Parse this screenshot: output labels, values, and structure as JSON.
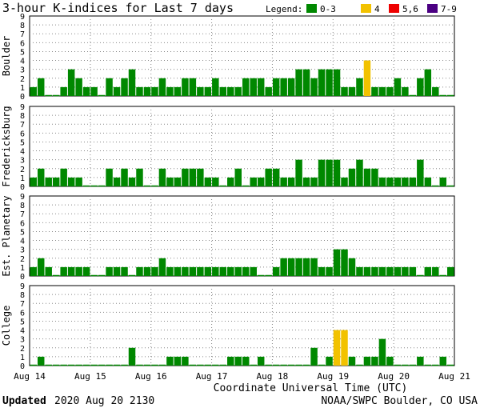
{
  "header": {
    "title": "3-hour K-indices for Last 7 days",
    "legend_label": "Legend:",
    "legend": [
      {
        "label": "0-3",
        "color": "#008800"
      },
      {
        "label": "4",
        "color": "#f2c200"
      },
      {
        "label": "5,6",
        "color": "#ee0000"
      },
      {
        "label": "7-9",
        "color": "#4b0082"
      }
    ]
  },
  "footer": {
    "updated_label": "Updated",
    "updated_value": "2020 Aug 20 2130",
    "credit": "NOAA/SWPC Boulder, CO USA"
  },
  "chart_data": [
    {
      "type": "bar",
      "ylabel": "Boulder",
      "ylim": [
        0,
        9
      ],
      "x_tick_labels": [
        "Aug 14",
        "Aug 15",
        "Aug 16",
        "Aug 17",
        "Aug 18",
        "Aug 19",
        "Aug 20",
        "Aug 21"
      ],
      "xlabel": "Coordinate Universal Time (UTC)",
      "values": [
        1,
        2,
        0,
        0,
        1,
        3,
        2,
        1,
        1,
        0,
        2,
        1,
        2,
        3,
        1,
        1,
        1,
        2,
        1,
        1,
        2,
        2,
        1,
        1,
        2,
        1,
        1,
        1,
        2,
        2,
        2,
        1,
        2,
        2,
        2,
        3,
        3,
        2,
        3,
        3,
        3,
        1,
        1,
        2,
        4,
        1,
        1,
        1,
        2,
        1,
        0,
        2,
        3,
        1,
        0,
        0
      ]
    },
    {
      "type": "bar",
      "ylabel": "Fredericksburg",
      "ylim": [
        0,
        9
      ],
      "x_tick_labels": [
        "Aug 14",
        "Aug 15",
        "Aug 16",
        "Aug 17",
        "Aug 18",
        "Aug 19",
        "Aug 20",
        "Aug 21"
      ],
      "xlabel": "Coordinate Universal Time (UTC)",
      "values": [
        1,
        2,
        1,
        1,
        2,
        1,
        1,
        0,
        0,
        0,
        2,
        1,
        2,
        1,
        2,
        0,
        0,
        2,
        1,
        1,
        2,
        2,
        2,
        1,
        1,
        0,
        1,
        2,
        0,
        1,
        1,
        2,
        2,
        1,
        1,
        3,
        1,
        1,
        3,
        3,
        3,
        1,
        2,
        3,
        2,
        2,
        1,
        1,
        1,
        1,
        1,
        3,
        1,
        0,
        1,
        0
      ]
    },
    {
      "type": "bar",
      "ylabel": "Est. Planetary",
      "ylim": [
        0,
        9
      ],
      "x_tick_labels": [
        "Aug 14",
        "Aug 15",
        "Aug 16",
        "Aug 17",
        "Aug 18",
        "Aug 19",
        "Aug 20",
        "Aug 21"
      ],
      "xlabel": "Coordinate Universal Time (UTC)",
      "values": [
        1,
        2,
        1,
        0,
        1,
        1,
        1,
        1,
        0,
        0,
        1,
        1,
        1,
        0,
        1,
        1,
        1,
        2,
        1,
        1,
        1,
        1,
        1,
        1,
        1,
        1,
        1,
        1,
        1,
        1,
        0,
        0,
        1,
        2,
        2,
        2,
        2,
        2,
        1,
        1,
        3,
        3,
        2,
        1,
        1,
        1,
        1,
        1,
        1,
        1,
        1,
        0,
        1,
        1,
        0,
        1
      ]
    },
    {
      "type": "bar",
      "ylabel": "College",
      "ylim": [
        0,
        9
      ],
      "x_tick_labels": [
        "Aug 14",
        "Aug 15",
        "Aug 16",
        "Aug 17",
        "Aug 18",
        "Aug 19",
        "Aug 20",
        "Aug 21"
      ],
      "xlabel": "Coordinate Universal Time (UTC)",
      "values": [
        0,
        1,
        0,
        0,
        0,
        0,
        0,
        0,
        0,
        0,
        0,
        0,
        0,
        2,
        0,
        0,
        0,
        0,
        1,
        1,
        1,
        0,
        0,
        0,
        0,
        0,
        1,
        1,
        1,
        0,
        1,
        0,
        0,
        0,
        0,
        0,
        0,
        2,
        0,
        1,
        4,
        4,
        1,
        0,
        1,
        1,
        3,
        1,
        0,
        0,
        0,
        1,
        0,
        0,
        1,
        0
      ]
    }
  ]
}
